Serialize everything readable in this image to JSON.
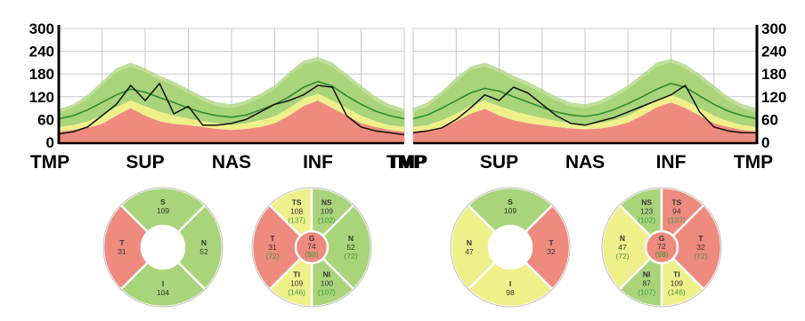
{
  "colors": {
    "red": "#ef8a7e",
    "yellow": "#eff08a",
    "green": "#a9d47a",
    "green_dark": "#2e8b2e",
    "trace": "#111111",
    "grid": "#c8c8c8",
    "axis": "#000000"
  },
  "chart_data": [
    {
      "type": "area",
      "eye": "left",
      "y_axis_side": "left",
      "ylim": [
        0,
        300
      ],
      "yticks": [
        0,
        60,
        120,
        180,
        240,
        300
      ],
      "xticks": [
        "TMP",
        "SUP",
        "NAS",
        "INF",
        "TMP"
      ],
      "grid": true,
      "x": [
        0,
        15,
        30,
        45,
        60,
        75,
        90,
        105,
        120,
        135,
        150,
        165,
        180,
        195,
        210,
        225,
        240,
        255,
        270,
        285,
        300,
        315,
        330,
        345,
        360
      ],
      "bands": {
        "p1": [
          28,
          32,
          38,
          48,
          70,
          90,
          70,
          55,
          48,
          45,
          40,
          35,
          32,
          35,
          40,
          50,
          70,
          95,
          110,
          90,
          70,
          50,
          40,
          32,
          28
        ],
        "p5": [
          40,
          45,
          55,
          70,
          92,
          110,
          95,
          80,
          70,
          62,
          55,
          50,
          45,
          50,
          58,
          68,
          90,
          115,
          128,
          110,
          90,
          70,
          55,
          45,
          40
        ],
        "p95": [
          78,
          92,
          115,
          150,
          185,
          200,
          185,
          165,
          150,
          130,
          110,
          95,
          90,
          100,
          118,
          140,
          175,
          205,
          215,
          200,
          170,
          140,
          110,
          90,
          78
        ],
        "p99": [
          88,
          100,
          125,
          160,
          195,
          210,
          195,
          175,
          160,
          140,
          120,
          105,
          100,
          110,
          128,
          150,
          185,
          215,
          225,
          210,
          180,
          150,
          120,
          100,
          88
        ]
      },
      "normal": [
        62,
        70,
        85,
        105,
        125,
        140,
        132,
        118,
        105,
        90,
        78,
        70,
        66,
        72,
        85,
        100,
        120,
        145,
        160,
        148,
        122,
        100,
        82,
        70,
        62
      ],
      "patient": [
        22,
        28,
        40,
        70,
        100,
        150,
        110,
        155,
        75,
        95,
        45,
        45,
        50,
        60,
        80,
        100,
        110,
        125,
        150,
        145,
        70,
        40,
        30,
        25,
        20
      ]
    },
    {
      "type": "area",
      "eye": "right",
      "y_axis_side": "right",
      "ylim": [
        0,
        300
      ],
      "yticks": [
        0,
        60,
        120,
        180,
        240,
        300
      ],
      "xticks": [
        "TMP",
        "SUP",
        "NAS",
        "INF",
        "TMP"
      ],
      "grid": true,
      "x": [
        0,
        15,
        30,
        45,
        60,
        75,
        90,
        105,
        120,
        135,
        150,
        165,
        180,
        195,
        210,
        225,
        240,
        255,
        270,
        285,
        300,
        315,
        330,
        345,
        360
      ],
      "bands": {
        "p1": [
          28,
          32,
          38,
          55,
          75,
          88,
          70,
          58,
          50,
          45,
          40,
          36,
          34,
          36,
          42,
          52,
          70,
          92,
          105,
          90,
          70,
          50,
          40,
          32,
          28
        ],
        "p5": [
          40,
          45,
          58,
          75,
          95,
          110,
          95,
          82,
          72,
          64,
          56,
          50,
          46,
          50,
          58,
          70,
          90,
          112,
          125,
          110,
          90,
          70,
          55,
          45,
          40
        ],
        "p95": [
          80,
          95,
          125,
          160,
          190,
          200,
          185,
          165,
          150,
          130,
          110,
          95,
          90,
          100,
          118,
          140,
          170,
          200,
          210,
          195,
          170,
          140,
          110,
          90,
          80
        ],
        "p99": [
          90,
          105,
          135,
          170,
          200,
          210,
          195,
          175,
          160,
          140,
          120,
          105,
          100,
          110,
          128,
          150,
          180,
          210,
          220,
          205,
          180,
          150,
          120,
          100,
          90
        ]
      },
      "normal": [
        62,
        72,
        90,
        110,
        130,
        142,
        135,
        120,
        106,
        92,
        80,
        72,
        68,
        74,
        86,
        102,
        120,
        140,
        155,
        145,
        122,
        100,
        82,
        70,
        62
      ],
      "patient": [
        25,
        30,
        38,
        60,
        90,
        125,
        110,
        145,
        130,
        100,
        70,
        50,
        45,
        55,
        65,
        80,
        95,
        110,
        125,
        150,
        80,
        40,
        30,
        25,
        25
      ]
    },
    {
      "type": "pie",
      "eye": "left",
      "layout": "quadrant",
      "sectors": [
        {
          "key": "S",
          "label": "S",
          "value": "109",
          "norm": "",
          "zone": "green"
        },
        {
          "key": "N",
          "label": "N",
          "value": "52",
          "norm": "",
          "zone": "green"
        },
        {
          "key": "I",
          "label": "I",
          "value": "104",
          "norm": "",
          "zone": "green"
        },
        {
          "key": "T",
          "label": "T",
          "value": "31",
          "norm": "",
          "zone": "red"
        }
      ],
      "center": null
    },
    {
      "type": "pie",
      "eye": "left",
      "layout": "sector",
      "sectors": [
        {
          "key": "TS",
          "label": "TS",
          "value": "108",
          "norm": "(137)",
          "zone": "yellow"
        },
        {
          "key": "NS",
          "label": "NS",
          "value": "109",
          "norm": "(102)",
          "zone": "green"
        },
        {
          "key": "N",
          "label": "N",
          "value": "52",
          "norm": "(72)",
          "zone": "green"
        },
        {
          "key": "NI",
          "label": "NI",
          "value": "100",
          "norm": "(107)",
          "zone": "green"
        },
        {
          "key": "TI",
          "label": "TI",
          "value": "109",
          "norm": "(146)",
          "zone": "yellow"
        },
        {
          "key": "T",
          "label": "T",
          "value": "31",
          "norm": "(72)",
          "zone": "red"
        }
      ],
      "center": {
        "label": "G",
        "value": "74",
        "norm": "(98)",
        "zone": "red"
      }
    },
    {
      "type": "pie",
      "eye": "right",
      "layout": "quadrant",
      "sectors": [
        {
          "key": "S",
          "label": "S",
          "value": "109",
          "norm": "",
          "zone": "green"
        },
        {
          "key": "T",
          "label": "T",
          "value": "32",
          "norm": "",
          "zone": "red"
        },
        {
          "key": "I",
          "label": "I",
          "value": "98",
          "norm": "",
          "zone": "yellow"
        },
        {
          "key": "N",
          "label": "N",
          "value": "47",
          "norm": "",
          "zone": "yellow"
        }
      ],
      "center": null
    },
    {
      "type": "pie",
      "eye": "right",
      "layout": "sector",
      "sectors": [
        {
          "key": "NS",
          "label": "NS",
          "value": "123",
          "norm": "(102)",
          "zone": "green"
        },
        {
          "key": "TS",
          "label": "TS",
          "value": "94",
          "norm": "(137)",
          "zone": "red"
        },
        {
          "key": "T",
          "label": "T",
          "value": "32",
          "norm": "(72)",
          "zone": "red"
        },
        {
          "key": "TI",
          "label": "TI",
          "value": "109",
          "norm": "(146)",
          "zone": "yellow"
        },
        {
          "key": "NI",
          "label": "NI",
          "value": "87",
          "norm": "(107)",
          "zone": "green"
        },
        {
          "key": "N",
          "label": "N",
          "value": "47",
          "norm": "(72)",
          "zone": "yellow"
        }
      ],
      "center": {
        "label": "G",
        "value": "72",
        "norm": "(98)",
        "zone": "red"
      }
    }
  ]
}
